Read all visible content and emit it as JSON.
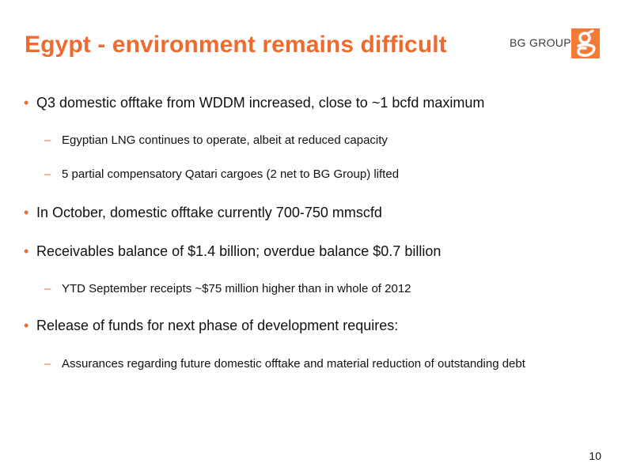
{
  "slide": {
    "title": "Egypt - environment remains difficult",
    "brand": "BG GROUP",
    "logo_glyph": "g",
    "page_number": "10"
  },
  "colors": {
    "accent": "#ee6b2f",
    "logo_bg": "#f47a35",
    "text": "#111111"
  },
  "bullets": [
    {
      "level": 1,
      "marker": "•",
      "text": "Q3 domestic offtake from WDDM increased, close to ~1 bcfd maximum"
    },
    {
      "level": 2,
      "marker": "–",
      "text": "Egyptian LNG continues to operate, albeit at reduced capacity"
    },
    {
      "level": 2,
      "marker": "–",
      "text": "5 partial compensatory Qatari cargoes (2 net to BG Group) lifted"
    },
    {
      "level": 1,
      "marker": "•",
      "text": "In October, domestic offtake currently 700-750 mmscfd"
    },
    {
      "level": 1,
      "marker": "•",
      "text": "Receivables balance of $1.4 billion; overdue balance $0.7 billion"
    },
    {
      "level": 2,
      "marker": "–",
      "text": "YTD September receipts ~$75 million higher than in whole of 2012"
    },
    {
      "level": 1,
      "marker": "•",
      "text": "Release of funds for next phase of development requires:"
    },
    {
      "level": 2,
      "marker": "–",
      "text": "Assurances regarding future domestic offtake and material reduction of outstanding debt"
    }
  ]
}
